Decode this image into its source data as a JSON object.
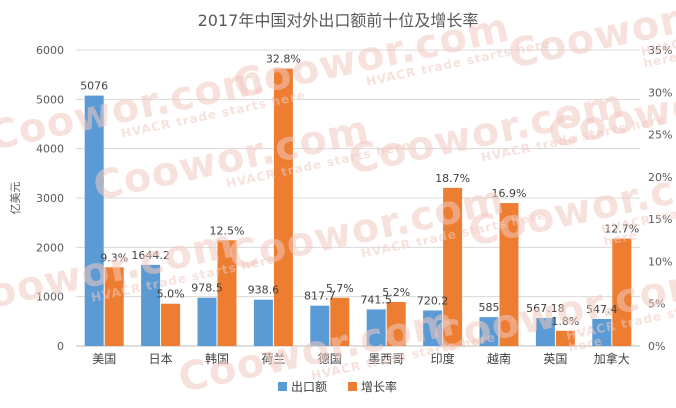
{
  "watermark": {
    "text": "Coowor.com",
    "tagline": "HVACR trade starts here"
  },
  "chart_data": {
    "type": "bar",
    "title": "2017年中国对外出口额前十位及增长率",
    "ylabel": "亿美元",
    "ylim": [
      0,
      6000
    ],
    "yticks": [
      "0",
      "1000",
      "2000",
      "3000",
      "4000",
      "5000",
      "6000"
    ],
    "y2lim": [
      0,
      35
    ],
    "y2ticks": [
      "0%",
      "5%",
      "10%",
      "15%",
      "20%",
      "25%",
      "30%",
      "35%"
    ],
    "categories": [
      "美国",
      "日本",
      "韩国",
      "荷兰",
      "德国",
      "墨西哥",
      "印度",
      "越南",
      "英国",
      "加拿大"
    ],
    "series": [
      {
        "name": "出口额",
        "axis": "left",
        "color": "#5b9bd5",
        "values": [
          5076,
          1644.2,
          978.5,
          938.6,
          817.7,
          741.5,
          720.2,
          585,
          567.18,
          547.4
        ],
        "labels": [
          "5076",
          "1644.2",
          "978.5",
          "938.6",
          "817.7",
          "741.5",
          "720.2",
          "585",
          "567.18",
          "547.4"
        ]
      },
      {
        "name": "增长率",
        "axis": "right",
        "color": "#ed7d31",
        "values": [
          9.3,
          5.0,
          12.5,
          32.8,
          5.7,
          5.2,
          18.7,
          16.9,
          1.8,
          12.7
        ],
        "labels": [
          "9.3%",
          "5.0%",
          "12.5%",
          "32.8%",
          "5.7%",
          "5.2%",
          "18.7%",
          "16.9%",
          "1.8%",
          "12.7%"
        ]
      }
    ],
    "grid": true,
    "legend": "bottom"
  }
}
